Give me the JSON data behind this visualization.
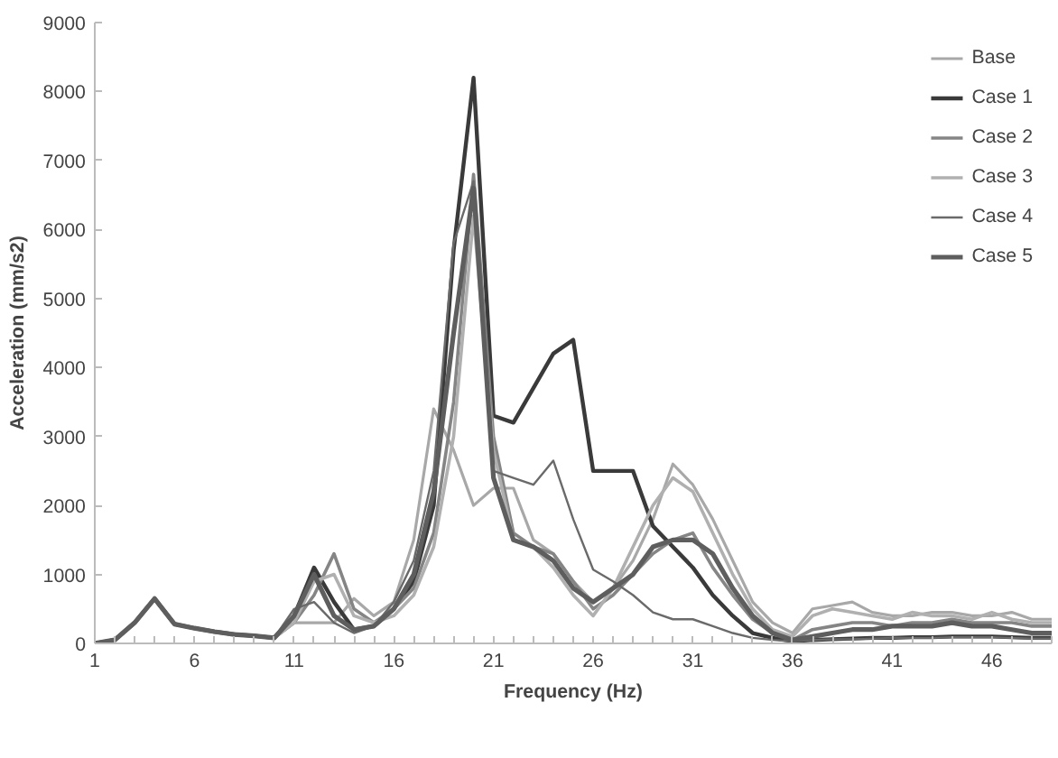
{
  "chart_data": {
    "type": "line",
    "xlabel": "Frequency (Hz)",
    "ylabel": "Acceleration (mm/s2)",
    "x": [
      1,
      2,
      3,
      4,
      5,
      6,
      7,
      8,
      9,
      10,
      11,
      12,
      13,
      14,
      15,
      16,
      17,
      18,
      19,
      20,
      21,
      22,
      23,
      24,
      25,
      26,
      27,
      28,
      29,
      30,
      31,
      32,
      33,
      34,
      35,
      36,
      37,
      38,
      39,
      40,
      41,
      42,
      43,
      44,
      45,
      46,
      47,
      48,
      49
    ],
    "xlim": [
      1,
      49
    ],
    "xticks": [
      1,
      {
        "value": 2,
        "label": null
      },
      {
        "value": 3,
        "label": null
      },
      {
        "value": 4,
        "label": null
      },
      {
        "value": 5,
        "label": null
      },
      6,
      {
        "value": 7,
        "label": null
      },
      {
        "value": 8,
        "label": null
      },
      {
        "value": 9,
        "label": null
      },
      {
        "value": 10,
        "label": null
      },
      11,
      {
        "value": 12,
        "label": null
      },
      {
        "value": 13,
        "label": null
      },
      {
        "value": 14,
        "label": null
      },
      {
        "value": 15,
        "label": null
      },
      16,
      {
        "value": 17,
        "label": null
      },
      {
        "value": 18,
        "label": null
      },
      {
        "value": 19,
        "label": null
      },
      {
        "value": 20,
        "label": null
      },
      21,
      {
        "value": 22,
        "label": null
      },
      {
        "value": 23,
        "label": null
      },
      {
        "value": 24,
        "label": null
      },
      {
        "value": 25,
        "label": null
      },
      26,
      {
        "value": 27,
        "label": null
      },
      {
        "value": 28,
        "label": null
      },
      {
        "value": 29,
        "label": null
      },
      {
        "value": 30,
        "label": null
      },
      31,
      {
        "value": 32,
        "label": null
      },
      {
        "value": 33,
        "label": null
      },
      {
        "value": 34,
        "label": null
      },
      {
        "value": 35,
        "label": null
      },
      36,
      {
        "value": 37,
        "label": null
      },
      {
        "value": 38,
        "label": null
      },
      {
        "value": 39,
        "label": null
      },
      {
        "value": 40,
        "label": null
      },
      41,
      {
        "value": 42,
        "label": null
      },
      {
        "value": 43,
        "label": null
      },
      {
        "value": 44,
        "label": null
      },
      {
        "value": 45,
        "label": null
      },
      46,
      {
        "value": 47,
        "label": null
      },
      {
        "value": 48,
        "label": null
      },
      {
        "value": 49,
        "label": null
      }
    ],
    "ylim": [
      0,
      9000
    ],
    "yticks": [
      0,
      1000,
      2000,
      3000,
      4000,
      5000,
      6000,
      7000,
      8000,
      9000
    ],
    "grid": false,
    "legend": "top right",
    "marker": "none",
    "line_style": "solid",
    "series": [
      {
        "name": "Base",
        "color": "#a8a8a8",
        "values": [
          0,
          50,
          300,
          650,
          280,
          220,
          170,
          130,
          110,
          80,
          300,
          300,
          300,
          650,
          400,
          600,
          1500,
          3400,
          2800,
          2000,
          2250,
          2250,
          1500,
          1300,
          900,
          600,
          800,
          1200,
          1800,
          2600,
          2300,
          1800,
          1200,
          600,
          300,
          150,
          500,
          550,
          600,
          450,
          400,
          400,
          450,
          450,
          400,
          400,
          450,
          350,
          350
        ]
      },
      {
        "name": "Case 1",
        "color": "#3a3a3a",
        "values": [
          0,
          50,
          300,
          650,
          280,
          220,
          170,
          130,
          110,
          80,
          400,
          1100,
          600,
          200,
          250,
          500,
          900,
          2000,
          5700,
          8200,
          3300,
          3200,
          3700,
          4200,
          4400,
          2500,
          2500,
          2500,
          1700,
          1400,
          1100,
          700,
          400,
          150,
          80,
          30,
          50,
          60,
          70,
          80,
          80,
          90,
          90,
          100,
          100,
          100,
          90,
          80,
          80
        ]
      },
      {
        "name": "Case 2",
        "color": "#858585",
        "values": [
          0,
          50,
          300,
          650,
          280,
          220,
          170,
          130,
          110,
          80,
          300,
          700,
          1300,
          500,
          300,
          500,
          800,
          1600,
          3500,
          6800,
          3000,
          1600,
          1400,
          1300,
          900,
          500,
          700,
          1000,
          1300,
          1500,
          1600,
          1100,
          700,
          350,
          150,
          50,
          200,
          250,
          300,
          300,
          250,
          300,
          300,
          350,
          300,
          300,
          300,
          250,
          250
        ]
      },
      {
        "name": "Case 3",
        "color": "#b0b0b0",
        "values": [
          0,
          50,
          300,
          650,
          280,
          220,
          170,
          130,
          110,
          80,
          300,
          900,
          1000,
          400,
          300,
          400,
          700,
          1400,
          3000,
          6200,
          2800,
          1500,
          1400,
          1100,
          700,
          400,
          800,
          1400,
          2000,
          2400,
          2200,
          1600,
          1000,
          500,
          200,
          100,
          400,
          500,
          450,
          400,
          350,
          450,
          400,
          400,
          350,
          450,
          350,
          300,
          300
        ]
      },
      {
        "name": "Case 4",
        "color": "#6a6a6a",
        "values": [
          0,
          50,
          300,
          650,
          280,
          220,
          170,
          130,
          110,
          80,
          500,
          600,
          300,
          150,
          250,
          600,
          1200,
          2500,
          5800,
          6700,
          2500,
          2400,
          2300,
          2650,
          1800,
          1070,
          900,
          700,
          450,
          350,
          350,
          250,
          150,
          80,
          50,
          30,
          50,
          60,
          60,
          70,
          80,
          80,
          80,
          90,
          90,
          90,
          80,
          70,
          70
        ]
      },
      {
        "name": "Case 5",
        "color": "#5e5e5e",
        "values": [
          0,
          50,
          300,
          650,
          280,
          220,
          170,
          130,
          110,
          80,
          400,
          1000,
          400,
          200,
          250,
          500,
          1000,
          2200,
          4500,
          6600,
          2400,
          1500,
          1400,
          1200,
          800,
          600,
          800,
          1000,
          1400,
          1500,
          1500,
          1300,
          800,
          400,
          150,
          50,
          100,
          150,
          200,
          200,
          250,
          250,
          250,
          300,
          250,
          250,
          200,
          150,
          150
        ]
      }
    ]
  }
}
